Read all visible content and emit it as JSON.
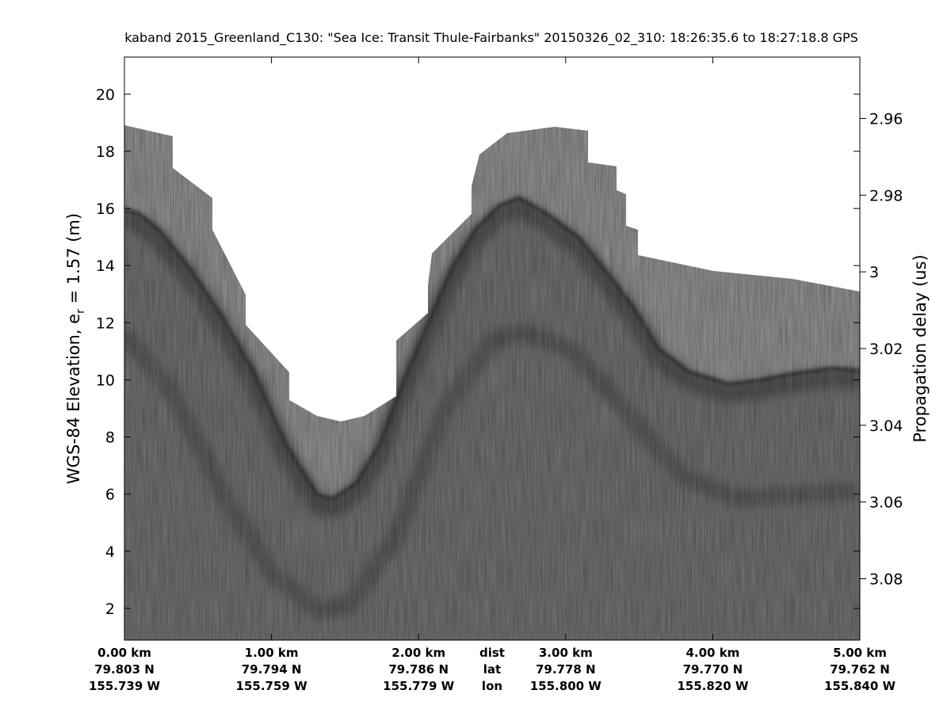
{
  "chart_data": {
    "type": "echogram",
    "title": "kaband 2015_Greenland_C130: \"Sea Ice: Transit Thule-Fairbanks\"  20150326_02_310: 18:26:35.6 to 18:27:18.8 GPS",
    "ylabel_parts": [
      "WGS-84 Elevation, e",
      "r",
      " = 1.57 (m)"
    ],
    "y2label": "Propagation delay (us)",
    "xlim": [
      0,
      5
    ],
    "xticks": [
      {
        "value": 0,
        "label": "0.00 km"
      },
      {
        "value": 1,
        "label": "1.00 km"
      },
      {
        "value": 2,
        "label": "2.00 km"
      },
      {
        "value": 3,
        "label": "3.00 km"
      },
      {
        "value": 4,
        "label": "4.00 km"
      },
      {
        "value": 5,
        "label": "5.00 km"
      }
    ],
    "x_lat_labels": [
      "79.803 N",
      "79.794 N",
      "79.786 N",
      "79.778 N",
      "79.770 N",
      "79.762 N"
    ],
    "x_lon_labels": [
      "155.739 W",
      "155.759 W",
      "155.779 W",
      "155.800 W",
      "155.820 W",
      "155.840 W"
    ],
    "x_row_names": [
      "dist",
      "lat",
      "lon"
    ],
    "ylim": [
      0.89,
      21.3
    ],
    "yticks": [
      2,
      4,
      6,
      8,
      10,
      12,
      14,
      16,
      18,
      20
    ],
    "y2lim": [
      3.096,
      2.944
    ],
    "y2ticks": [
      2.96,
      2.98,
      3,
      3.02,
      3.04,
      3.06,
      3.08
    ]
  }
}
